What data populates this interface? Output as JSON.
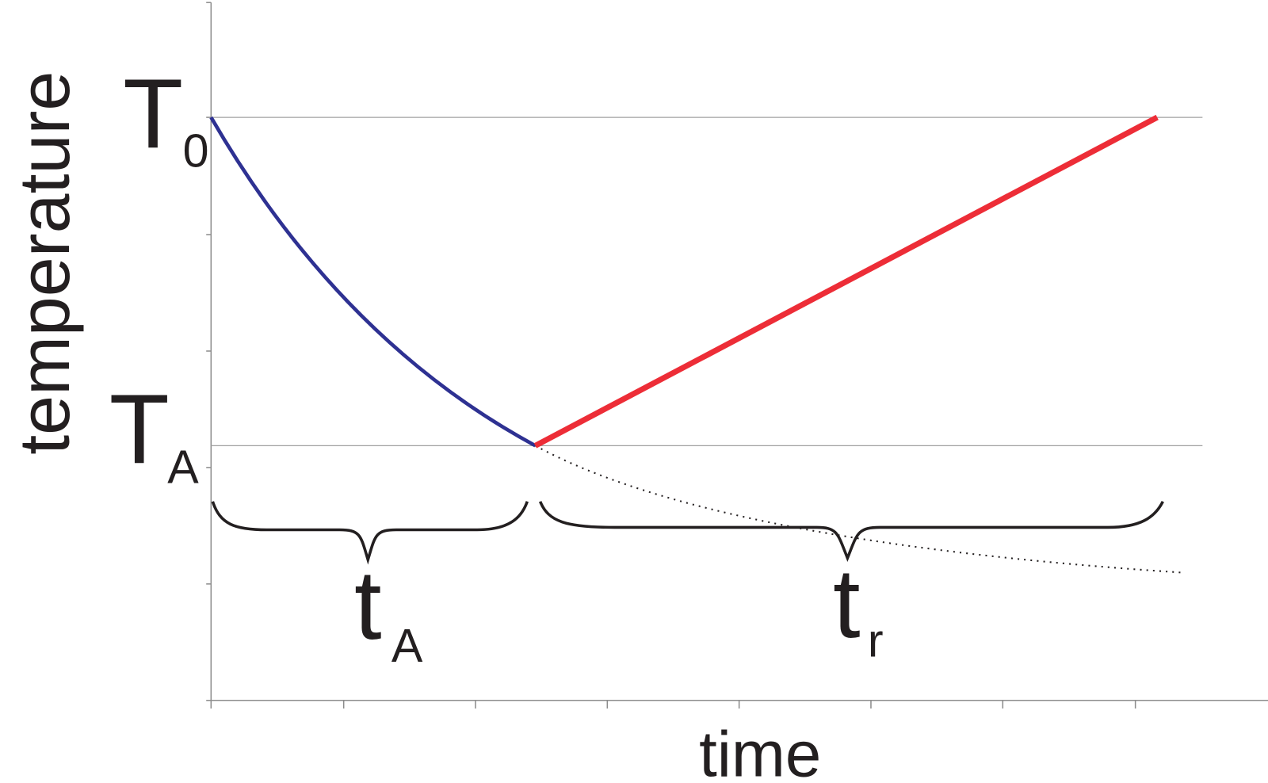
{
  "axes": {
    "y_label": "temperature",
    "x_label": "time"
  },
  "labels": [
    {
      "main": "T",
      "sub": "0"
    },
    {
      "main": "T",
      "sub": "A"
    },
    {
      "main": "t",
      "sub": "A"
    },
    {
      "main": "t",
      "sub": "r"
    }
  ]
}
